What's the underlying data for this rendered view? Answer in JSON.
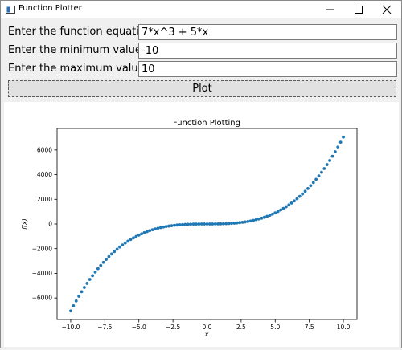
{
  "window": {
    "title": "Function Plotter"
  },
  "form": {
    "equation_label": "Enter the function equation:",
    "equation_value": "7*x^3 + 5*x",
    "min_label": "Enter the minimum value:",
    "min_value": "-10",
    "max_label": "Enter the maximum value:",
    "max_value": "10",
    "plot_label": "Plot"
  },
  "colors": {
    "series": "#1f77b4"
  },
  "chart_data": {
    "type": "scatter",
    "title": "Function Plotting",
    "xlabel": "x",
    "ylabel": "f(x)",
    "xlim": [
      -11,
      11
    ],
    "ylim": [
      -7750,
      7750
    ],
    "xticks": [
      -10.0,
      -7.5,
      -5.0,
      -2.5,
      0.0,
      2.5,
      5.0,
      7.5,
      10.0
    ],
    "xtick_labels": [
      "−10.0",
      "−7.5",
      "−5.0",
      "−2.5",
      "0.0",
      "2.5",
      "5.0",
      "7.5",
      "10.0"
    ],
    "yticks": [
      -6000,
      -4000,
      -2000,
      0,
      2000,
      4000,
      6000
    ],
    "ytick_labels": [
      "−6000",
      "−4000",
      "−2000",
      "0",
      "2000",
      "4000",
      "6000"
    ],
    "series": [
      {
        "x": [
          -10,
          -9.8,
          -9.6,
          -9.4,
          -9.2,
          -9,
          -8.8,
          -8.6,
          -8.4,
          -8.2,
          -8,
          -7.8,
          -7.6,
          -7.4,
          -7.2,
          -7,
          -6.8,
          -6.6,
          -6.4,
          -6.2,
          -6,
          -5.8,
          -5.6,
          -5.4,
          -5.2,
          -5,
          -4.8,
          -4.6,
          -4.4,
          -4.2,
          -4,
          -3.8,
          -3.6,
          -3.4,
          -3.2,
          -3,
          -2.8,
          -2.6,
          -2.4,
          -2.2,
          -2,
          -1.8,
          -1.6,
          -1.4,
          -1.2,
          -1,
          -0.8,
          -0.6,
          -0.4,
          -0.2,
          0,
          0.2,
          0.4,
          0.6,
          0.8,
          1,
          1.2,
          1.4,
          1.6,
          1.8,
          2,
          2.2,
          2.4,
          2.6,
          2.8,
          3,
          3.2,
          3.4,
          3.6,
          3.8,
          4,
          4.2,
          4.4,
          4.6,
          4.8,
          5,
          5.2,
          5.4,
          5.6,
          5.8,
          6,
          6.2,
          6.4,
          6.6,
          6.8,
          7,
          7.2,
          7.4,
          7.6,
          7.8,
          8,
          8.2,
          8.4,
          8.6,
          8.8,
          9,
          9.2,
          9.4,
          9.6,
          9.8,
          10
        ],
        "y": [
          -7050,
          -6637,
          -6241,
          -5861,
          -5497,
          -5148,
          -4814,
          -4495,
          -4191,
          -3901,
          -3624,
          -3361,
          -3111,
          -2874,
          -2649,
          -2436,
          -2235,
          -2046,
          -1867,
          -1699,
          -1542,
          -1395,
          -1257,
          -1129,
          -1010,
          -900,
          -798,
          -704,
          -618,
          -540,
          -468,
          -403,
          -345,
          -292,
          -245,
          -204,
          -168,
          -136,
          -109,
          -86,
          -66,
          -50,
          -37,
          -26,
          -18,
          -12,
          -8,
          -5,
          -2,
          -1,
          0,
          1,
          2,
          5,
          8,
          12,
          18,
          26,
          37,
          50,
          66,
          86,
          109,
          136,
          168,
          204,
          245,
          292,
          345,
          403,
          468,
          540,
          618,
          704,
          798,
          900,
          1010,
          1129,
          1257,
          1395,
          1542,
          1699,
          1867,
          2046,
          2235,
          2436,
          2649,
          2874,
          3111,
          3361,
          3624,
          3901,
          4191,
          4495,
          4814,
          5148,
          5497,
          5861,
          6241,
          6637,
          7050
        ]
      }
    ]
  }
}
